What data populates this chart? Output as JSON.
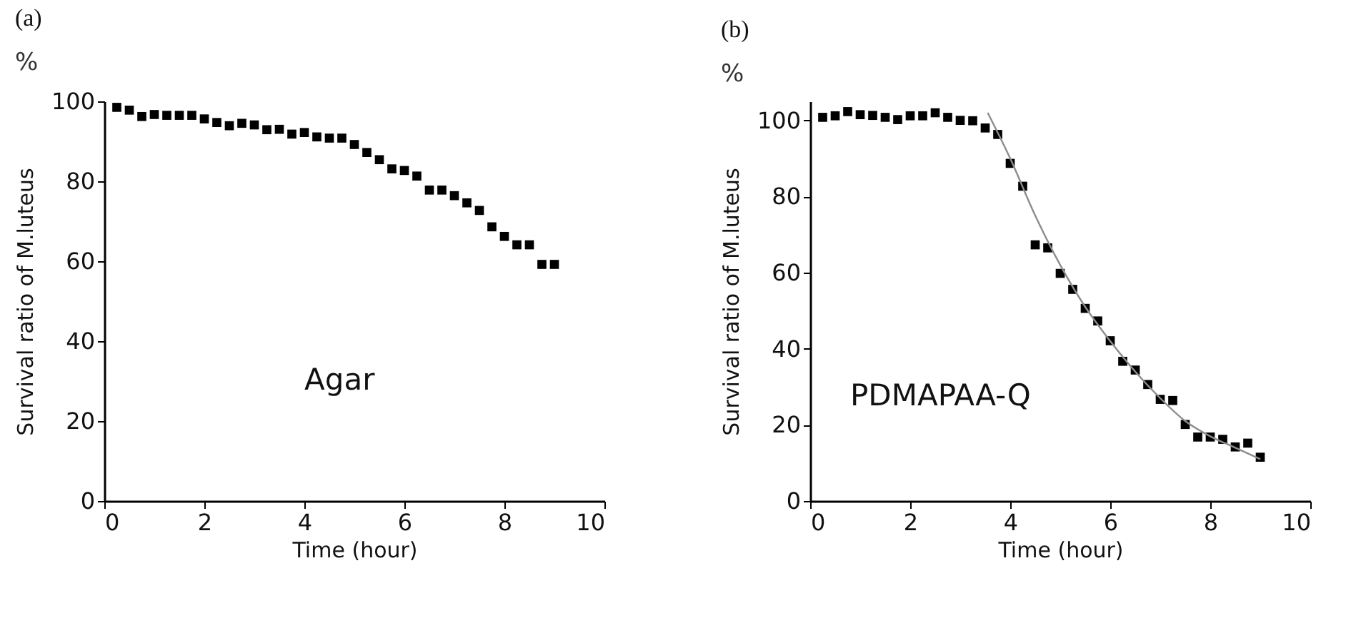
{
  "chart_data": [
    {
      "type": "scatter",
      "title": "(a)",
      "subtitle": "%",
      "xlabel": "Time (hour)",
      "ylabel": "Survival ratio of M.luteus",
      "annotations": [
        "Agar"
      ],
      "xlim": [
        0,
        10
      ],
      "xticks": [
        0,
        2,
        4,
        6,
        8,
        10
      ],
      "ylim": [
        0,
        100
      ],
      "yticks": [
        0,
        20,
        40,
        60,
        80,
        100
      ],
      "grid": false,
      "marker": "square",
      "x": [
        0.25,
        0.5,
        0.75,
        1,
        1.25,
        1.5,
        1.75,
        2,
        2.25,
        2.5,
        2.75,
        3,
        3.25,
        3.5,
        3.75,
        4,
        4.25,
        4.5,
        4.75,
        5,
        5.25,
        5.5,
        5.75,
        6,
        6.25,
        6.5,
        6.75,
        7,
        7.25,
        7.5,
        7.75,
        8,
        8.25,
        8.5,
        8.75,
        9
      ],
      "series": [
        {
          "color": "#000000",
          "values": [
            98.5,
            97.8,
            96.2,
            96.7,
            96.5,
            96.5,
            96.5,
            95.6,
            94.7,
            93.9,
            94.5,
            94.1,
            92.9,
            93,
            91.8,
            92.2,
            91.1,
            90.8,
            90.8,
            89.2,
            87.2,
            85.4,
            83.1,
            82.7,
            81.3,
            77.8,
            77.8,
            76.4,
            74.6,
            72.7,
            68.6,
            66.2,
            64.1,
            64.1,
            59.2,
            59.2
          ]
        }
      ]
    },
    {
      "type": "scatter",
      "title": "(b)",
      "subtitle": "%",
      "xlabel": "Time (hour)",
      "ylabel": "Survival ratio of M.luteus",
      "annotations": [
        "PDMAPAA-Q"
      ],
      "xlim": [
        0,
        10
      ],
      "xticks": [
        0,
        2,
        4,
        6,
        8,
        10
      ],
      "ylim": [
        0,
        105
      ],
      "yticks": [
        0,
        20,
        40,
        60,
        80,
        100
      ],
      "grid": false,
      "x": [
        0.25,
        0.5,
        0.75,
        1,
        1.25,
        1.5,
        1.75,
        2,
        2.25,
        2.5,
        2.75,
        3,
        3.25,
        3.5,
        3.75,
        4,
        4.25,
        4.5,
        4.75,
        5,
        5.25,
        5.5,
        5.75,
        6,
        6.25,
        6.5,
        6.75,
        7,
        7.25,
        7.5,
        7.75,
        8,
        8.25,
        8.5,
        8.75,
        9
      ],
      "series": [
        {
          "color": "#000000",
          "marker": "square",
          "values": [
            100.8,
            101.2,
            102.3,
            101.5,
            101.3,
            100.8,
            100.2,
            101.2,
            101.2,
            102,
            100.8,
            100,
            99.9,
            98,
            96.3,
            88.7,
            82.7,
            67.3,
            66.5,
            59.8,
            55.6,
            50.6,
            47.3,
            42.1,
            36.7,
            34.4,
            30.6,
            26.7,
            26.4,
            20.1,
            16.8,
            16.8,
            16.2,
            14.2,
            15.2,
            11.5
          ]
        },
        {
          "type": "line",
          "marker": "none",
          "color": "#8c8c8c",
          "x": [
            3.55,
            4,
            4.5,
            5,
            5.5,
            6,
            6.5,
            7,
            7.5,
            8,
            8.5,
            9
          ],
          "values": [
            102,
            90,
            75,
            62,
            51,
            42,
            34,
            27,
            21,
            17,
            14,
            11
          ]
        }
      ]
    }
  ]
}
